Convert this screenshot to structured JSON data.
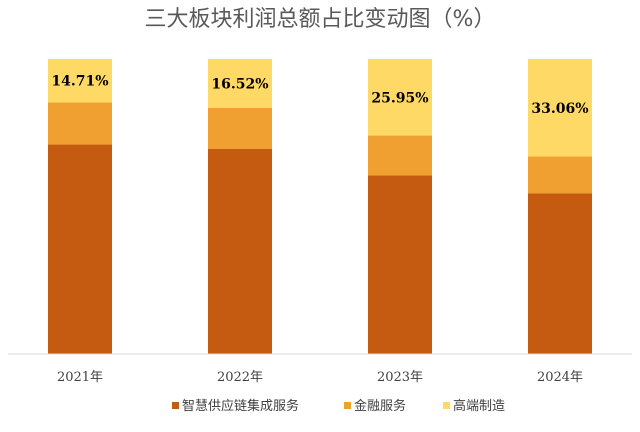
{
  "chart_data": {
    "type": "bar",
    "stacked": true,
    "normalized": true,
    "title": "三大板块利润总额占比变动图（%）",
    "categories": [
      "2021年",
      "2022年",
      "2023年",
      "2024年"
    ],
    "series": [
      {
        "name": "智慧供应链集成服务",
        "values": [
          71.0,
          69.5,
          60.5,
          54.5
        ],
        "color": "#C55A11"
      },
      {
        "name": "金融服务",
        "values": [
          14.29,
          13.98,
          13.55,
          12.44
        ],
        "color": "#F0A030"
      },
      {
        "name": "高端制造",
        "values": [
          14.71,
          16.52,
          25.95,
          33.06
        ],
        "color": "#FFD966"
      }
    ],
    "data_labels": {
      "series": "高端制造",
      "texts": [
        "14.71%",
        "16.52%",
        "25.95%",
        "33.06%"
      ]
    },
    "ylim": [
      0,
      100
    ],
    "grid": false,
    "legend_position": "bottom"
  }
}
